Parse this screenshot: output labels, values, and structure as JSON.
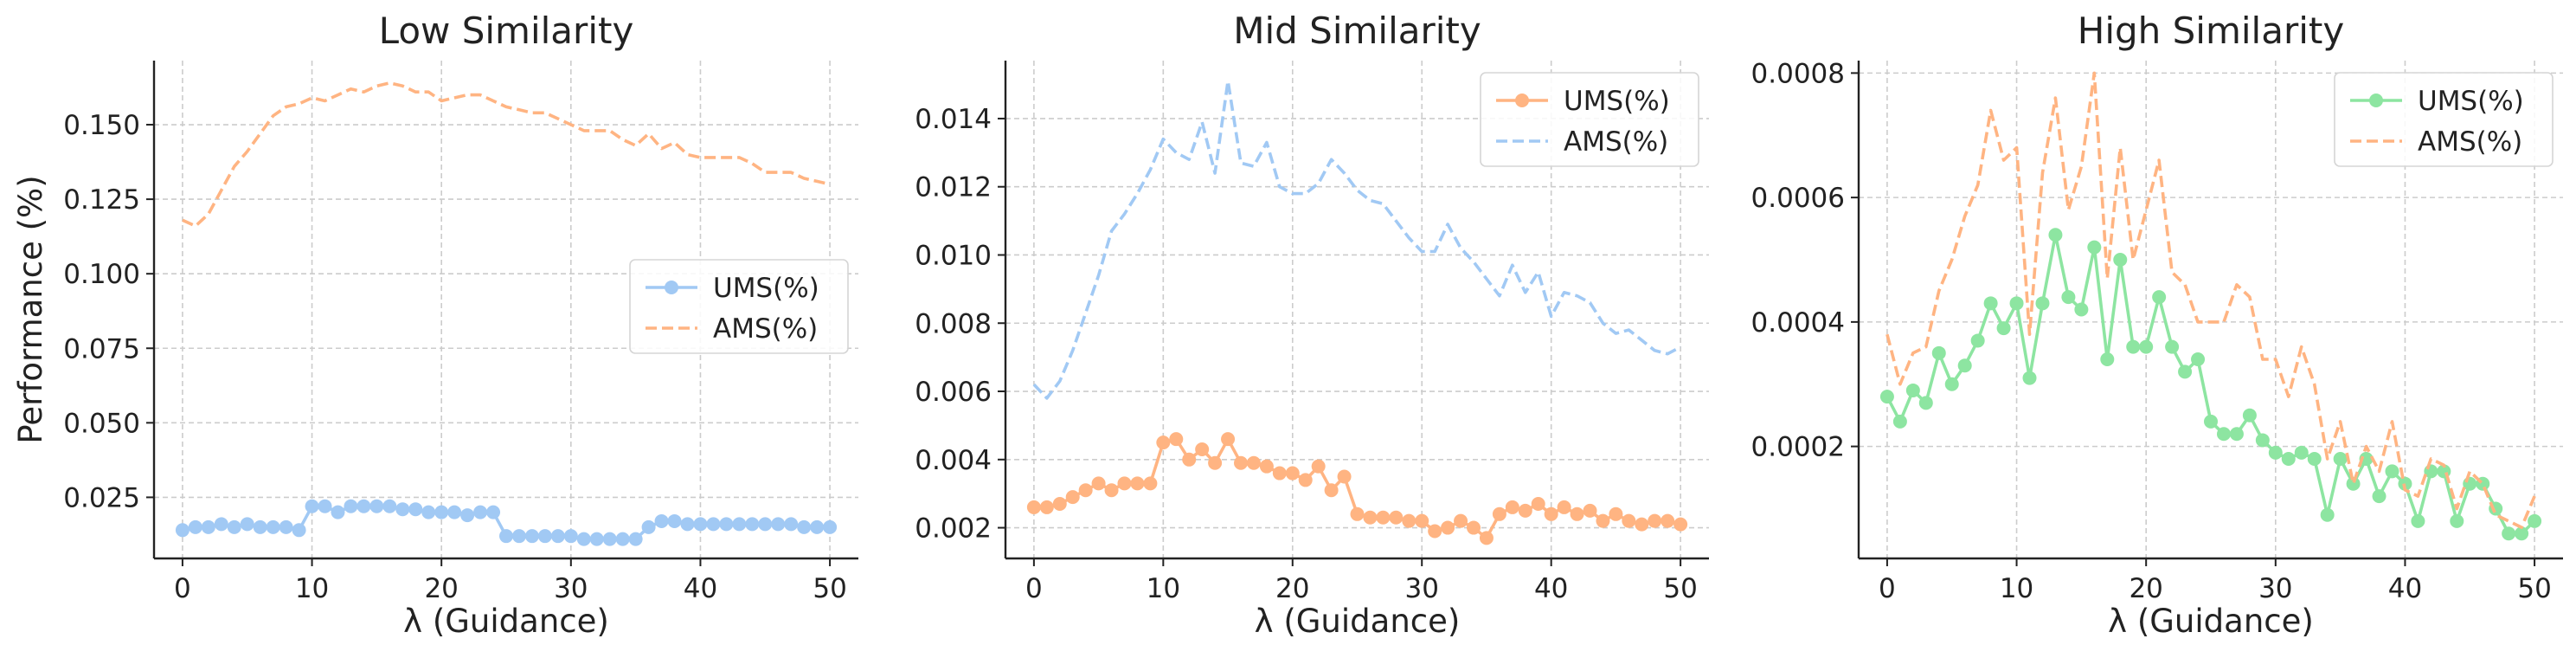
{
  "colors": {
    "ums_low": "#a1c9f4",
    "ams_low": "#ffb482",
    "ums_mid": "#ffb482",
    "ams_mid": "#a1c9f4",
    "ums_high": "#8de5a1",
    "ams_high": "#ffb482",
    "grid": "#cccccc",
    "axis": "#222222"
  },
  "chart_data": [
    {
      "type": "line",
      "title": "Low Similarity",
      "xlabel": "λ (Guidance)",
      "ylabel": "Performance (%)",
      "xlim": [
        -2.2,
        52.2
      ],
      "ylim": [
        0.0045,
        0.1715
      ],
      "xticks": [
        0,
        10,
        20,
        30,
        40,
        50
      ],
      "yticks": [
        0.025,
        0.05,
        0.075,
        0.1,
        0.125,
        0.15
      ],
      "ytick_labels": [
        "0.025",
        "0.050",
        "0.075",
        "0.100",
        "0.125",
        "0.150"
      ],
      "grid": true,
      "legend": "center-right",
      "x": [
        0,
        1,
        2,
        3,
        4,
        5,
        6,
        7,
        8,
        9,
        10,
        11,
        12,
        13,
        14,
        15,
        16,
        17,
        18,
        19,
        20,
        21,
        22,
        23,
        24,
        25,
        26,
        27,
        28,
        29,
        30,
        31,
        32,
        33,
        34,
        35,
        36,
        37,
        38,
        39,
        40,
        41,
        42,
        43,
        44,
        45,
        46,
        47,
        48,
        49,
        50
      ],
      "series": [
        {
          "name": "UMS(%)",
          "style": "solid-marker",
          "color_key": "ums_low",
          "values": [
            0.014,
            0.015,
            0.015,
            0.016,
            0.015,
            0.016,
            0.015,
            0.015,
            0.015,
            0.014,
            0.022,
            0.022,
            0.02,
            0.022,
            0.022,
            0.022,
            0.022,
            0.021,
            0.021,
            0.02,
            0.02,
            0.02,
            0.019,
            0.02,
            0.02,
            0.012,
            0.012,
            0.012,
            0.012,
            0.012,
            0.012,
            0.011,
            0.011,
            0.011,
            0.011,
            0.011,
            0.015,
            0.017,
            0.017,
            0.016,
            0.016,
            0.016,
            0.016,
            0.016,
            0.016,
            0.016,
            0.016,
            0.016,
            0.015,
            0.015,
            0.015
          ]
        },
        {
          "name": "AMS(%)",
          "style": "dashed",
          "color_key": "ams_low",
          "values": [
            0.118,
            0.116,
            0.12,
            0.128,
            0.136,
            0.141,
            0.147,
            0.153,
            0.156,
            0.157,
            0.159,
            0.158,
            0.16,
            0.162,
            0.161,
            0.163,
            0.164,
            0.163,
            0.161,
            0.161,
            0.158,
            0.159,
            0.16,
            0.16,
            0.158,
            0.156,
            0.155,
            0.154,
            0.154,
            0.152,
            0.15,
            0.148,
            0.148,
            0.148,
            0.145,
            0.143,
            0.147,
            0.142,
            0.144,
            0.14,
            0.139,
            0.139,
            0.139,
            0.139,
            0.137,
            0.134,
            0.134,
            0.134,
            0.132,
            0.131,
            0.13
          ]
        }
      ]
    },
    {
      "type": "line",
      "title": "Mid Similarity",
      "xlabel": "λ (Guidance)",
      "ylabel": "",
      "xlim": [
        -2.2,
        52.2
      ],
      "ylim": [
        0.0011,
        0.0157
      ],
      "xticks": [
        0,
        10,
        20,
        30,
        40,
        50
      ],
      "yticks": [
        0.002,
        0.004,
        0.006,
        0.008,
        0.01,
        0.012,
        0.014
      ],
      "ytick_labels": [
        "0.002",
        "0.004",
        "0.006",
        "0.008",
        "0.010",
        "0.012",
        "0.014"
      ],
      "grid": true,
      "legend": "upper-right",
      "x": [
        0,
        1,
        2,
        3,
        4,
        5,
        6,
        7,
        8,
        9,
        10,
        11,
        12,
        13,
        14,
        15,
        16,
        17,
        18,
        19,
        20,
        21,
        22,
        23,
        24,
        25,
        26,
        27,
        28,
        29,
        30,
        31,
        32,
        33,
        34,
        35,
        36,
        37,
        38,
        39,
        40,
        41,
        42,
        43,
        44,
        45,
        46,
        47,
        48,
        49,
        50
      ],
      "series": [
        {
          "name": "UMS(%)",
          "style": "solid-marker",
          "color_key": "ums_mid",
          "values": [
            0.0026,
            0.0026,
            0.0027,
            0.0029,
            0.0031,
            0.0033,
            0.0031,
            0.0033,
            0.0033,
            0.0033,
            0.0045,
            0.0046,
            0.004,
            0.0043,
            0.0039,
            0.0046,
            0.0039,
            0.0039,
            0.0038,
            0.0036,
            0.0036,
            0.0034,
            0.0038,
            0.0031,
            0.0035,
            0.0024,
            0.0023,
            0.0023,
            0.0023,
            0.0022,
            0.0022,
            0.0019,
            0.002,
            0.0022,
            0.002,
            0.0017,
            0.0024,
            0.0026,
            0.0025,
            0.0027,
            0.0024,
            0.0026,
            0.0024,
            0.0025,
            0.0022,
            0.0024,
            0.0022,
            0.0021,
            0.0022,
            0.0022,
            0.0021
          ]
        },
        {
          "name": "AMS(%)",
          "style": "dashed",
          "color_key": "ams_mid",
          "values": [
            0.0062,
            0.0058,
            0.0063,
            0.0072,
            0.0083,
            0.0094,
            0.0107,
            0.0112,
            0.0118,
            0.0125,
            0.0134,
            0.013,
            0.0128,
            0.0139,
            0.0124,
            0.0151,
            0.0127,
            0.0126,
            0.0133,
            0.012,
            0.0118,
            0.0118,
            0.0121,
            0.0128,
            0.0124,
            0.0119,
            0.0116,
            0.0115,
            0.011,
            0.0105,
            0.0101,
            0.0101,
            0.0109,
            0.0102,
            0.0098,
            0.0093,
            0.0088,
            0.0097,
            0.0089,
            0.0095,
            0.0082,
            0.0089,
            0.0088,
            0.0086,
            0.008,
            0.0077,
            0.0078,
            0.0075,
            0.0072,
            0.0071,
            0.0073
          ]
        }
      ]
    },
    {
      "type": "line",
      "title": "High Similarity",
      "xlabel": "λ (Guidance)",
      "ylabel": "",
      "xlim": [
        -2.2,
        52.2
      ],
      "ylim": [
        2e-05,
        0.00082
      ],
      "xticks": [
        0,
        10,
        20,
        30,
        40,
        50
      ],
      "yticks": [
        0.0002,
        0.0004,
        0.0006,
        0.0008
      ],
      "ytick_labels": [
        "0.0002",
        "0.0004",
        "0.0006",
        "0.0008"
      ],
      "grid": true,
      "legend": "upper-right",
      "x": [
        0,
        1,
        2,
        3,
        4,
        5,
        6,
        7,
        8,
        9,
        10,
        11,
        12,
        13,
        14,
        15,
        16,
        17,
        18,
        19,
        20,
        21,
        22,
        23,
        24,
        25,
        26,
        27,
        28,
        29,
        30,
        31,
        32,
        33,
        34,
        35,
        36,
        37,
        38,
        39,
        40,
        41,
        42,
        43,
        44,
        45,
        46,
        47,
        48,
        49,
        50
      ],
      "series": [
        {
          "name": "UMS(%)",
          "style": "solid-marker",
          "color_key": "ums_high",
          "values": [
            0.00028,
            0.00024,
            0.00029,
            0.00027,
            0.00035,
            0.0003,
            0.00033,
            0.00037,
            0.00043,
            0.00039,
            0.00043,
            0.00031,
            0.00043,
            0.00054,
            0.00044,
            0.00042,
            0.00052,
            0.00034,
            0.0005,
            0.00036,
            0.00036,
            0.00044,
            0.00036,
            0.00032,
            0.00034,
            0.00024,
            0.00022,
            0.00022,
            0.00025,
            0.00021,
            0.00019,
            0.00018,
            0.00019,
            0.00018,
            9e-05,
            0.00018,
            0.00014,
            0.00018,
            0.00012,
            0.00016,
            0.00014,
            8e-05,
            0.00016,
            0.00016,
            8e-05,
            0.00014,
            0.00014,
            0.0001,
            6e-05,
            6e-05,
            8e-05
          ]
        },
        {
          "name": "AMS(%)",
          "style": "dashed",
          "color_key": "ams_high",
          "values": [
            0.00038,
            0.0003,
            0.00035,
            0.00036,
            0.00045,
            0.0005,
            0.00057,
            0.00062,
            0.00074,
            0.00066,
            0.00068,
            0.00038,
            0.00064,
            0.00076,
            0.00058,
            0.00065,
            0.0008,
            0.00047,
            0.00068,
            0.0005,
            0.00058,
            0.00066,
            0.00048,
            0.00046,
            0.0004,
            0.0004,
            0.0004,
            0.00046,
            0.00044,
            0.00034,
            0.00034,
            0.00028,
            0.00036,
            0.0003,
            0.00018,
            0.00024,
            0.00014,
            0.0002,
            0.00016,
            0.00024,
            0.00013,
            0.00012,
            0.00018,
            0.00017,
            0.0001,
            0.00016,
            0.00014,
            9e-05,
            8e-05,
            7e-05,
            0.00012
          ]
        }
      ]
    }
  ]
}
